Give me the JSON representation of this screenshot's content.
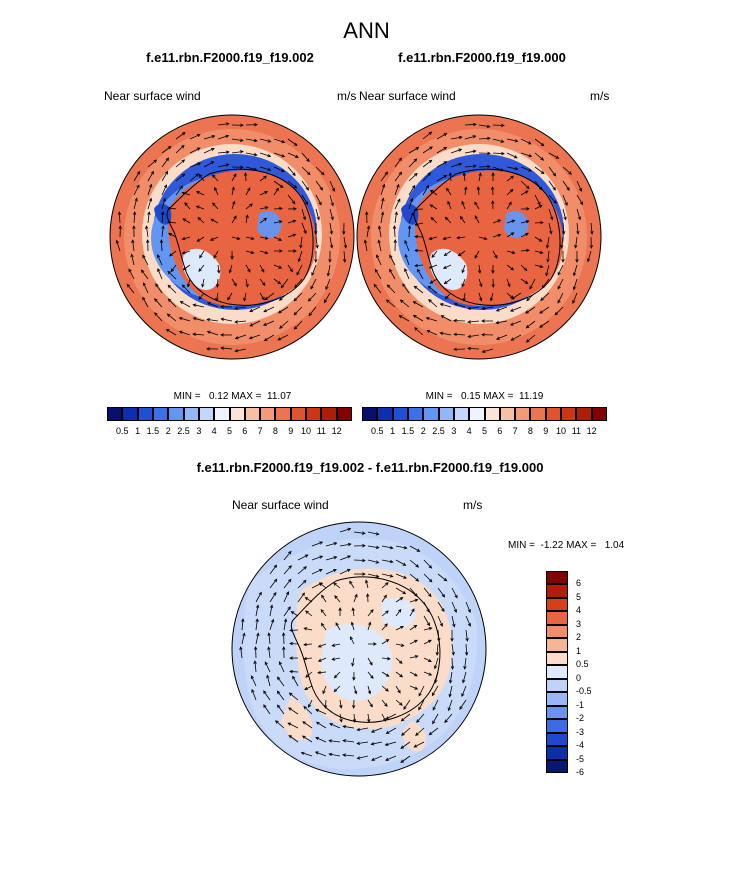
{
  "page": {
    "title": "ANN"
  },
  "colors": {
    "hbar": [
      "#08106e",
      "#0b2fb0",
      "#1f4fd6",
      "#3d6fe8",
      "#6395f2",
      "#93b6f6",
      "#c3d7fa",
      "#eef3fe",
      "#fde3d6",
      "#f8c0a3",
      "#f39a78",
      "#ec7450",
      "#e0532d",
      "#cc3615",
      "#ad1d08",
      "#820000"
    ],
    "vbar": [
      "#820000",
      "#b21d06",
      "#d4401a",
      "#e96440",
      "#f28d69",
      "#f7b596",
      "#fbdcc8",
      "#dfe9fc",
      "#bfd3f8",
      "#98b7f4",
      "#6a93ec",
      "#3e6be2",
      "#1f49cc",
      "#0c2fa6",
      "#06186f"
    ]
  },
  "panels": [
    {
      "title": "f.e11.rbn.F2000.f19_f19.002",
      "left_label": "Near surface wind",
      "right_label": "m/s",
      "stats": "MIN =   0.12 MAX =  11.07",
      "levels": [
        "0.5",
        "1",
        "1.5",
        "2",
        "2.5",
        "3",
        "4",
        "5",
        "6",
        "7",
        "8",
        "9",
        "10",
        "11",
        "12"
      ]
    },
    {
      "title": "f.e11.rbn.F2000.f19_f19.000",
      "left_label": "Near surface wind",
      "right_label": "m/s",
      "stats": "MIN =   0.15 MAX =  11.19",
      "levels": [
        "0.5",
        "1",
        "1.5",
        "2",
        "2.5",
        "3",
        "4",
        "5",
        "6",
        "7",
        "8",
        "9",
        "10",
        "11",
        "12"
      ]
    }
  ],
  "diff": {
    "title": "f.e11.rbn.F2000.f19_f19.002 - f.e11.rbn.F2000.f19_f19.000",
    "left_label": "Near surface wind",
    "right_label": "m/s",
    "stats": "MIN =  -1.22 MAX =   1.04",
    "levels": [
      "6",
      "5",
      "4",
      "3",
      "2",
      "1",
      "0.5",
      "0",
      "-0.5",
      "-1",
      "-2",
      "-3",
      "-4",
      "-5",
      "-6"
    ]
  }
}
